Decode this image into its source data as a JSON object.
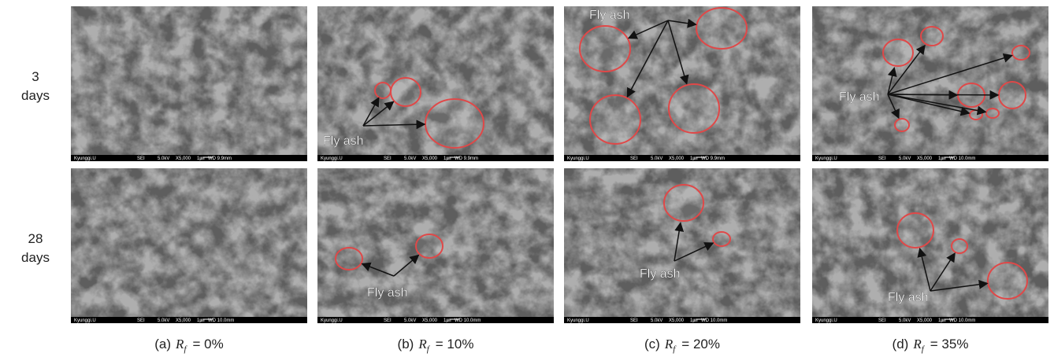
{
  "rows": [
    {
      "label": [
        "3",
        "days"
      ]
    },
    {
      "label": [
        "28",
        "days"
      ]
    }
  ],
  "captions": [
    {
      "letter": "(a)",
      "symbol": "R",
      "sub": "f",
      "value": "= 0%"
    },
    {
      "letter": "(b)",
      "symbol": "R",
      "sub": "f",
      "value": "= 10%"
    },
    {
      "letter": "(c)",
      "symbol": "R",
      "sub": "f",
      "value": "= 20%"
    },
    {
      "letter": "(d)",
      "symbol": "R",
      "sub": "f",
      "value": "= 35%"
    }
  ],
  "panels": [
    [
      {
        "info": [
          "Kyunggi.U",
          "SEI",
          "5.0kV",
          "X5,000",
          "1㎛",
          "WD 9.9mm"
        ]
      },
      {
        "info": [
          "Kyunggi.U",
          "SEI",
          "5.0kV",
          "X5,000",
          "1㎛",
          "WD 9.9mm"
        ],
        "annotation": "Fly ash"
      },
      {
        "info": [
          "Kyunggi.U",
          "SEI",
          "5.0kV",
          "X5,000",
          "1㎛",
          "WD 9.9mm"
        ],
        "annotation": "Fly ash"
      },
      {
        "info": [
          "Kyunggi.U",
          "SEI",
          "5.0kV",
          "X5,000",
          "1㎛",
          "WD 10.0mm"
        ],
        "annotation": "Fly ash"
      }
    ],
    [
      {
        "info": [
          "Kyunggi.U",
          "SEI",
          "5.0kV",
          "X5,000",
          "1㎛",
          "WD 10.0mm"
        ]
      },
      {
        "info": [
          "Kyunggi.U",
          "SEI",
          "5.0kV",
          "X5,000",
          "1㎛",
          "WD 10.0mm"
        ],
        "annotation": "Fly ash"
      },
      {
        "info": [
          "Kyunggi.U",
          "SEI",
          "5.0kV",
          "X5,000",
          "1㎛",
          "WD 10.0mm"
        ],
        "annotation": "Fly ash"
      },
      {
        "info": [
          "Kyunggi.U",
          "SEI",
          "5.0kV",
          "X5,000",
          "1㎛",
          "WD 10.0mm"
        ],
        "annotation": "Fly ash"
      }
    ]
  ]
}
